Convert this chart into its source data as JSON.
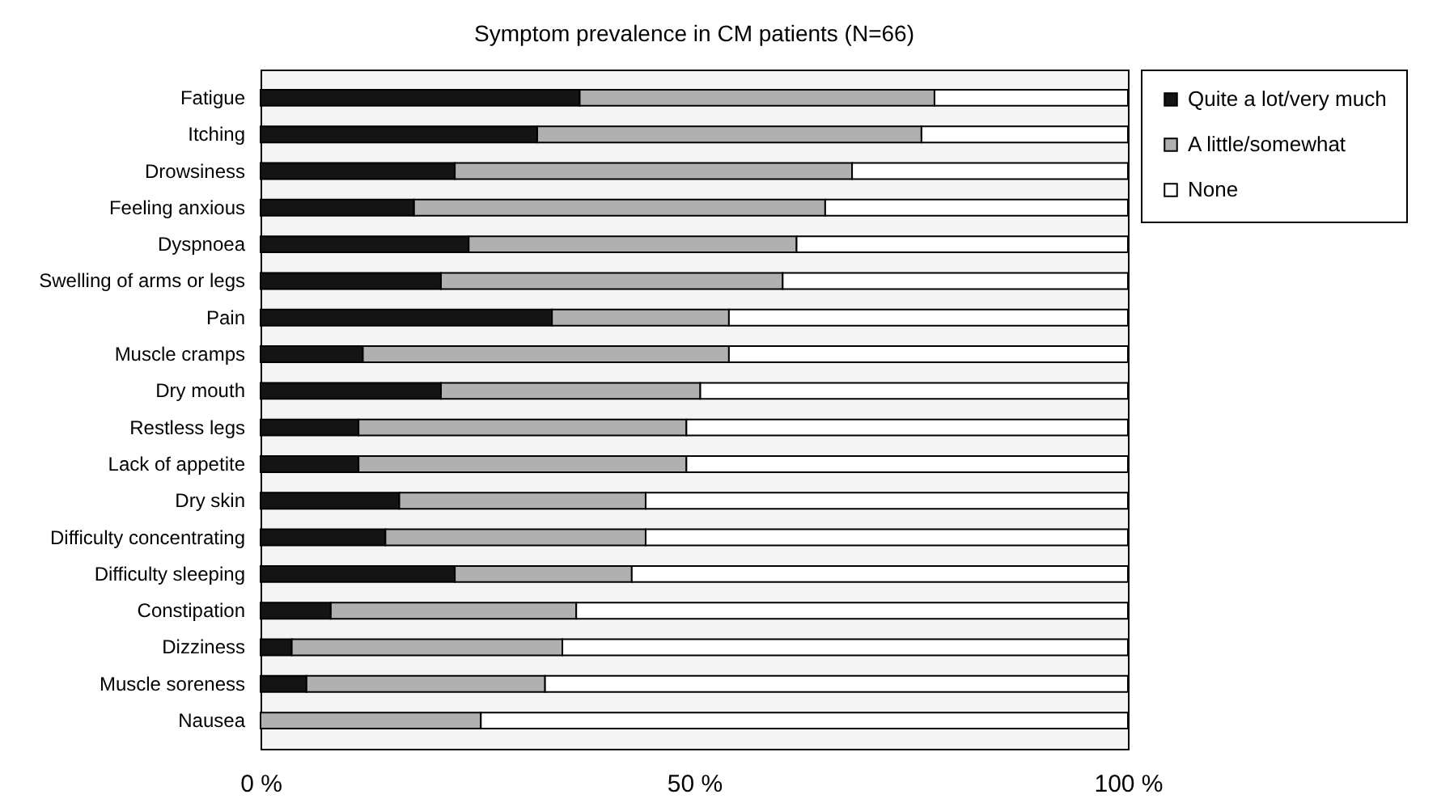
{
  "chart_data": {
    "type": "bar",
    "orientation": "horizontal",
    "stacked": true,
    "title": "Symptom prevalence in CM patients (N=66)",
    "categories": [
      "Fatigue",
      "Itching",
      "Drowsiness",
      "Feeling anxious",
      "Dyspnoea",
      "Swelling of arms or legs",
      "Pain",
      "Muscle cramps",
      "Dry mouth",
      "Restless legs",
      "Lack of appetite",
      "Dry skin",
      "Difficulty concentrating",
      "Difficulty sleeping",
      "Constipation",
      "Dizziness",
      "Muscle soreness",
      "Nausea"
    ],
    "series": [
      {
        "name": "Quite a lot/very much",
        "color": "#141414",
        "values": [
          36.8,
          31.9,
          22.4,
          17.7,
          24.0,
          20.8,
          33.6,
          11.8,
          20.8,
          11.3,
          11.3,
          16.0,
          14.4,
          22.4,
          8.1,
          3.6,
          5.3,
          0
        ]
      },
      {
        "name": "A little/somewhat",
        "color": "#b0b0b0",
        "values": [
          40.9,
          44.3,
          45.8,
          47.4,
          37.8,
          39.4,
          20.4,
          42.2,
          29.9,
          37.8,
          37.8,
          28.4,
          30.0,
          20.4,
          28.3,
          31.2,
          27.5,
          25.4
        ]
      },
      {
        "name": "None",
        "color": "#ffffff",
        "values": [
          22.3,
          23.8,
          31.8,
          34.9,
          38.2,
          39.8,
          46.0,
          46.0,
          49.3,
          50.9,
          50.9,
          55.6,
          55.6,
          57.2,
          63.6,
          65.2,
          67.2,
          74.6
        ]
      }
    ],
    "xlim": [
      0,
      100
    ],
    "xticks": [
      {
        "value": 0,
        "label": "0 %"
      },
      {
        "value": 50,
        "label": "50 %"
      },
      {
        "value": 100,
        "label": "100 %"
      }
    ],
    "grid": false,
    "legend": "right"
  }
}
